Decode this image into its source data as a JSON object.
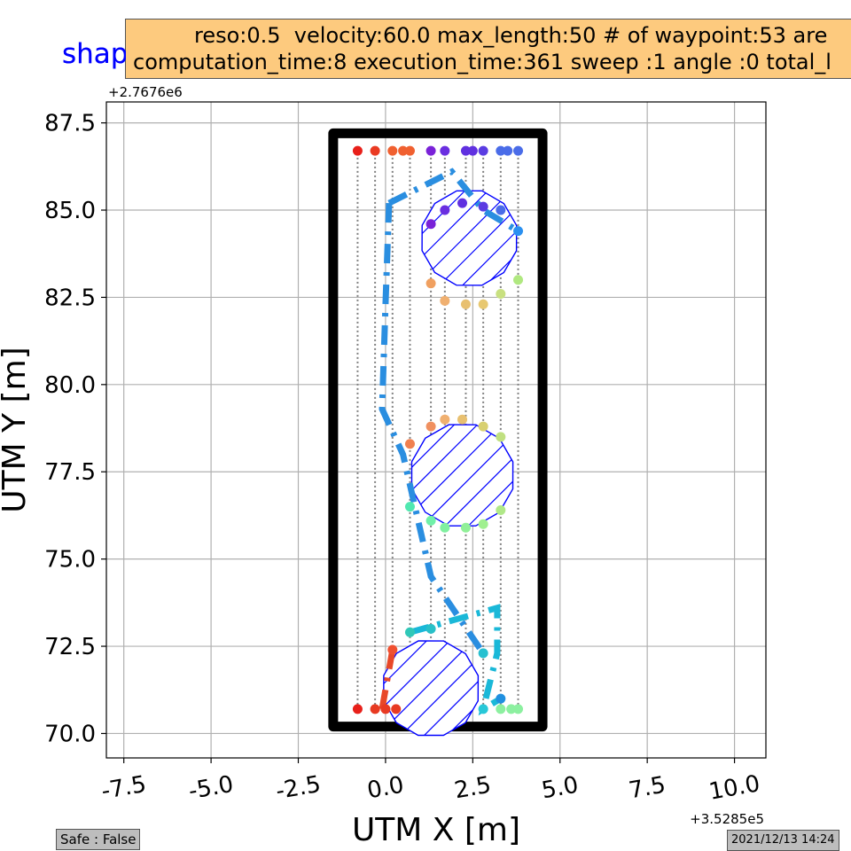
{
  "figure": {
    "title": "shapefiles_obs",
    "info_line1": "reso:0.5  velocity:60.0 max_length:50 # of waypoint:53 are",
    "info_line2": "computation_time:8 execution_time:361 sweep :1 angle :0 total_l",
    "safe_label": "Safe : False",
    "timestamp": "2021/12/13 14:24"
  },
  "chart_data": {
    "type": "scatter",
    "xlabel": "UTM X [m]",
    "ylabel": "UTM Y [m]",
    "x_offset_label": "+3.5285e5",
    "y_offset_label": "+2.7676e6",
    "xlim": [
      -8.0,
      10.9
    ],
    "ylim": [
      69.3,
      88.1
    ],
    "xticks": [
      -7.5,
      -5.0,
      -2.5,
      0.0,
      2.5,
      5.0,
      7.5,
      10.0
    ],
    "yticks": [
      70.0,
      72.5,
      75.0,
      77.5,
      80.0,
      82.5,
      85.0,
      87.5
    ],
    "xtick_labels": [
      "-7.5",
      "-5.0",
      "-2.5",
      "0.0",
      "2.5",
      "5.0",
      "7.5",
      "10.0"
    ],
    "ytick_labels": [
      "70.0",
      "72.5",
      "75.0",
      "77.5",
      "80.0",
      "82.5",
      "85.0",
      "87.5"
    ],
    "grid": true,
    "boundary": {
      "x": [
        -1.5,
        4.5
      ],
      "y": [
        70.2,
        87.2
      ],
      "color": "#000000"
    },
    "obstacles": [
      {
        "center": [
          2.4,
          84.2
        ],
        "radius": 1.4,
        "color": "#0000ff"
      },
      {
        "center": [
          2.2,
          77.4
        ],
        "radius": 1.5,
        "color": "#0000ff"
      },
      {
        "center": [
          1.3,
          71.3
        ],
        "radius": 1.4,
        "color": "#0000ff"
      }
    ],
    "sweep_lines_x": [
      -0.8,
      -0.3,
      0.2,
      0.7,
      1.3,
      1.7,
      2.3,
      2.8,
      3.3,
      3.8
    ],
    "sweep_lines_y": [
      70.7,
      86.7
    ],
    "top_points": [
      {
        "x": -0.8,
        "y": 86.7,
        "color": "#e8201a"
      },
      {
        "x": -0.3,
        "y": 86.7,
        "color": "#ea3a22"
      },
      {
        "x": 0.2,
        "y": 86.7,
        "color": "#f06030"
      },
      {
        "x": 0.5,
        "y": 86.7,
        "color": "#f06030"
      },
      {
        "x": 0.7,
        "y": 86.7,
        "color": "#f06030"
      },
      {
        "x": 1.3,
        "y": 86.7,
        "color": "#7a22d8"
      },
      {
        "x": 1.7,
        "y": 86.7,
        "color": "#6a2ee0"
      },
      {
        "x": 2.3,
        "y": 86.7,
        "color": "#6030e0"
      },
      {
        "x": 2.5,
        "y": 86.7,
        "color": "#6030e0"
      },
      {
        "x": 2.8,
        "y": 86.7,
        "color": "#5a3ce2"
      },
      {
        "x": 3.3,
        "y": 86.7,
        "color": "#4a6ce8"
      },
      {
        "x": 3.5,
        "y": 86.7,
        "color": "#4a6ce8"
      },
      {
        "x": 3.8,
        "y": 86.7,
        "color": "#4a6ce8"
      }
    ],
    "bottom_points": [
      {
        "x": -0.8,
        "y": 70.7,
        "color": "#e8201a"
      },
      {
        "x": -0.3,
        "y": 70.7,
        "color": "#e83a22"
      },
      {
        "x": 0.0,
        "y": 70.7,
        "color": "#e83a22"
      },
      {
        "x": 0.3,
        "y": 70.7,
        "color": "#e83a22"
      },
      {
        "x": 2.8,
        "y": 70.7,
        "color": "#28c8d8"
      },
      {
        "x": 3.3,
        "y": 70.7,
        "color": "#8cf0a0"
      },
      {
        "x": 3.6,
        "y": 70.7,
        "color": "#8cf0a0"
      },
      {
        "x": 3.8,
        "y": 70.7,
        "color": "#8cf0a0"
      }
    ],
    "waypoints": [
      {
        "x": 1.3,
        "y": 84.6,
        "color": "#7a22d8"
      },
      {
        "x": 1.7,
        "y": 85.0,
        "color": "#6a2ee0"
      },
      {
        "x": 2.2,
        "y": 85.2,
        "color": "#6030e0"
      },
      {
        "x": 2.8,
        "y": 85.1,
        "color": "#5a3ce2"
      },
      {
        "x": 3.3,
        "y": 85.0,
        "color": "#4a6ce8"
      },
      {
        "x": 3.8,
        "y": 84.4,
        "color": "#2a90f0"
      },
      {
        "x": 1.3,
        "y": 82.9,
        "color": "#f0a060"
      },
      {
        "x": 1.7,
        "y": 82.4,
        "color": "#f0b070"
      },
      {
        "x": 2.3,
        "y": 82.3,
        "color": "#e8c070"
      },
      {
        "x": 2.8,
        "y": 82.3,
        "color": "#e8c870"
      },
      {
        "x": 3.3,
        "y": 82.6,
        "color": "#c8e080"
      },
      {
        "x": 3.8,
        "y": 83.0,
        "color": "#b0e880"
      },
      {
        "x": 0.7,
        "y": 78.3,
        "color": "#f08050"
      },
      {
        "x": 1.3,
        "y": 78.8,
        "color": "#f09060"
      },
      {
        "x": 1.7,
        "y": 79.0,
        "color": "#f0b070"
      },
      {
        "x": 2.2,
        "y": 79.0,
        "color": "#e8c070"
      },
      {
        "x": 2.8,
        "y": 78.8,
        "color": "#d8d070"
      },
      {
        "x": 3.3,
        "y": 78.5,
        "color": "#c0e080"
      },
      {
        "x": 0.7,
        "y": 76.5,
        "color": "#50e8b0"
      },
      {
        "x": 1.3,
        "y": 76.1,
        "color": "#70f0a8"
      },
      {
        "x": 1.7,
        "y": 75.9,
        "color": "#80f0a0"
      },
      {
        "x": 2.3,
        "y": 75.9,
        "color": "#90f098"
      },
      {
        "x": 2.8,
        "y": 76.0,
        "color": "#a0f090"
      },
      {
        "x": 3.3,
        "y": 76.4,
        "color": "#b0e888"
      },
      {
        "x": 0.2,
        "y": 72.4,
        "color": "#f05030"
      },
      {
        "x": 0.7,
        "y": 72.9,
        "color": "#30c8b8"
      },
      {
        "x": 1.3,
        "y": 73.0,
        "color": "#28c0c8"
      },
      {
        "x": 2.8,
        "y": 72.3,
        "color": "#28c0d0"
      },
      {
        "x": 3.3,
        "y": 71.0,
        "color": "#2090e0"
      }
    ],
    "route_segments": [
      {
        "color": "#2a8ee0",
        "points": [
          [
            0.1,
            85.2
          ],
          [
            1.9,
            86.1
          ],
          [
            2.8,
            85.0
          ],
          [
            3.8,
            84.4
          ]
        ]
      },
      {
        "color": "#2a8ee0",
        "points": [
          [
            0.1,
            85.2
          ],
          [
            0.0,
            82.3
          ],
          [
            -0.1,
            79.3
          ],
          [
            0.5,
            78.0
          ],
          [
            1.3,
            74.5
          ],
          [
            2.8,
            72.3
          ]
        ]
      },
      {
        "color": "#1ab8d8",
        "points": [
          [
            0.7,
            72.9
          ],
          [
            3.2,
            73.6
          ],
          [
            3.2,
            72.3
          ],
          [
            2.8,
            70.7
          ],
          [
            3.3,
            71.0
          ]
        ]
      },
      {
        "color": "#e84828",
        "points": [
          [
            -0.1,
            70.7
          ],
          [
            0.2,
            72.4
          ]
        ]
      }
    ]
  }
}
